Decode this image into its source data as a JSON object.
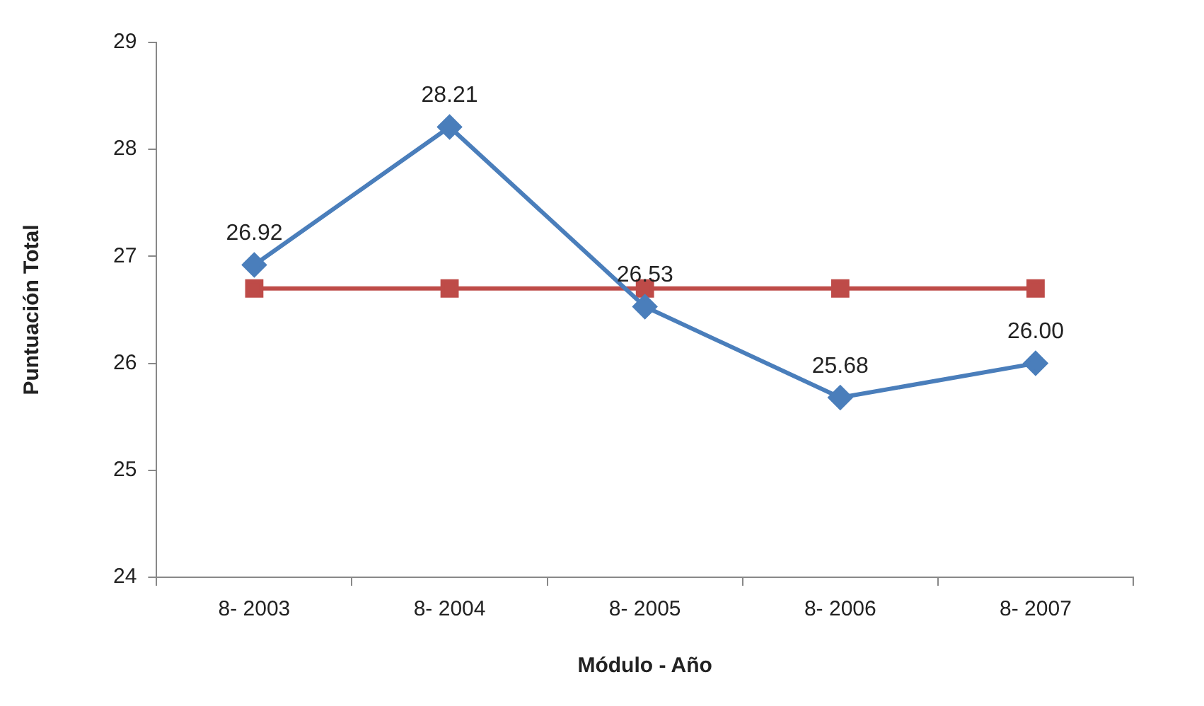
{
  "chart_data": {
    "type": "line",
    "xlabel": "Módulo - Año",
    "ylabel": "Puntuación Total",
    "categories": [
      "8- 2003",
      "8- 2004",
      "8- 2005",
      "8- 2006",
      "8- 2007"
    ],
    "series": [
      {
        "color": "#4a7ebb",
        "marker": "diamond",
        "values": [
          26.92,
          28.21,
          26.53,
          25.68,
          26.0
        ],
        "value_labels": [
          "26.92",
          "28.21",
          "26.53",
          "25.68",
          "26.00"
        ]
      },
      {
        "color": "#be4b48",
        "marker": "square",
        "values": [
          26.7,
          26.7,
          26.7,
          26.7,
          26.7
        ]
      }
    ],
    "ylim": [
      24,
      29
    ],
    "yticks": [
      24,
      25,
      26,
      27,
      28,
      29
    ],
    "legend": false,
    "grid": false
  }
}
